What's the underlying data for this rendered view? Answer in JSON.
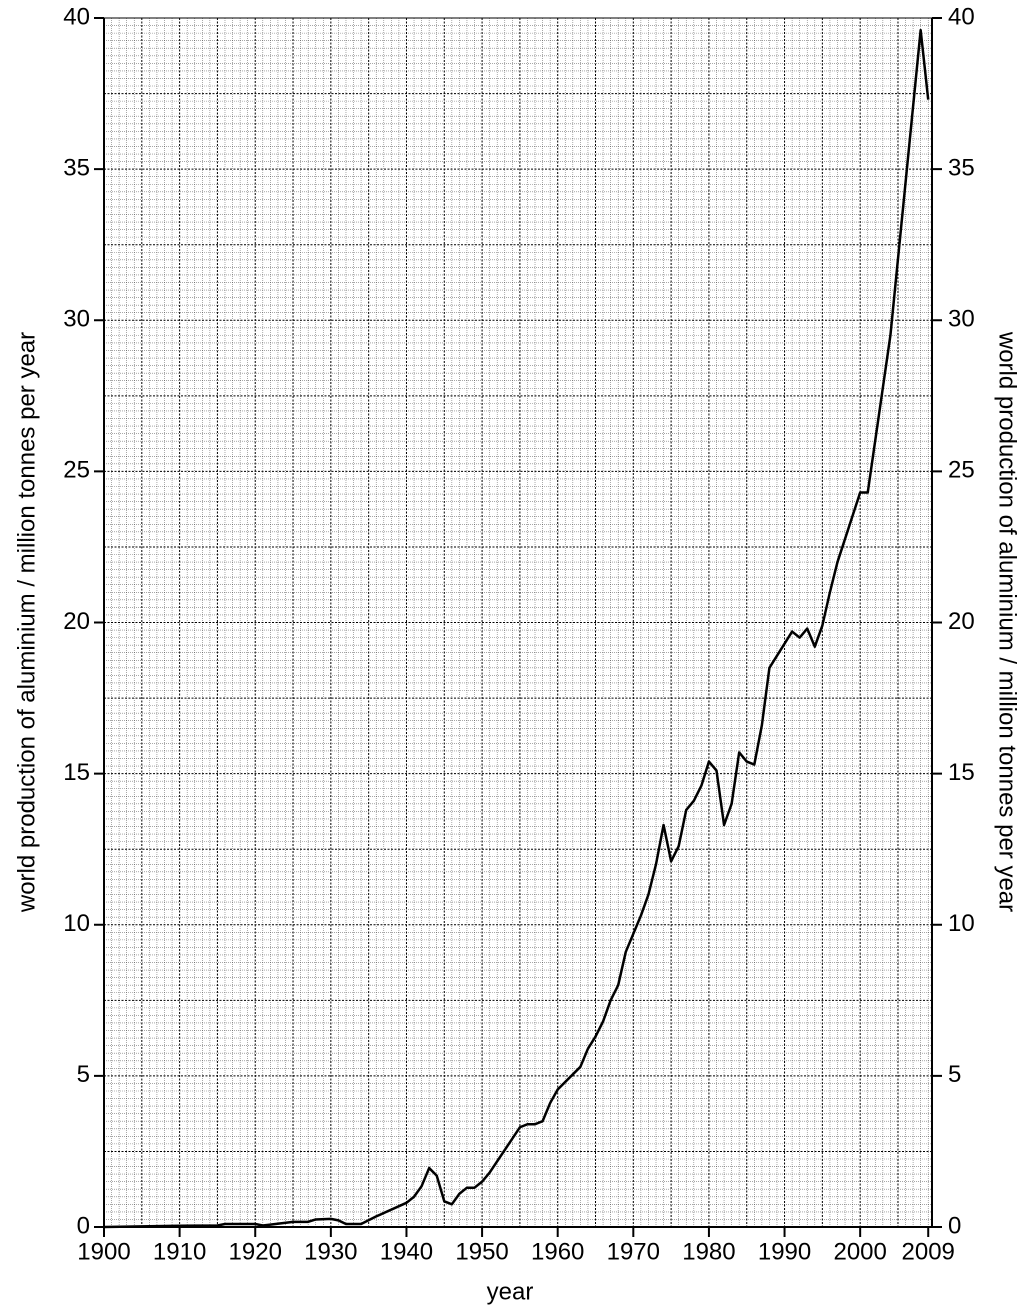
{
  "chart_data": {
    "type": "line",
    "x_label": "year",
    "y_label": "world production of aluminium / million tonnes per year",
    "y2_label": "world production of aluminium / million tonnes per year",
    "xlim": [
      1900,
      2009.5
    ],
    "xticks": [
      1900,
      1910,
      1920,
      1930,
      1940,
      1950,
      1960,
      1970,
      1980,
      1990,
      2000,
      2009
    ],
    "ylim": [
      0,
      40
    ],
    "yticks": [
      0,
      5,
      10,
      15,
      20,
      25,
      30,
      35,
      40
    ],
    "y2lim": [
      0,
      40
    ],
    "y2ticks": [
      0,
      5,
      10,
      15,
      20,
      25,
      30,
      35,
      40
    ],
    "grid": true,
    "x": [
      1900,
      1905,
      1910,
      1915,
      1916,
      1920,
      1921,
      1922,
      1925,
      1927,
      1928,
      1930,
      1931,
      1932,
      1934,
      1936,
      1940,
      1941,
      1942,
      1943,
      1944,
      1945,
      1946,
      1947,
      1948,
      1949,
      1950,
      1951,
      1955,
      1956,
      1957,
      1958,
      1959,
      1960,
      1963,
      1964,
      1965,
      1966,
      1967,
      1968,
      1969,
      1970,
      1971,
      1972,
      1973,
      1974,
      1975,
      1976,
      1977,
      1978,
      1979,
      1980,
      1981,
      1982,
      1983,
      1984,
      1985,
      1986,
      1987,
      1988,
      1991,
      1992,
      1993,
      1994,
      1995,
      1996,
      1997,
      2000,
      2001,
      2004,
      2008,
      2009
    ],
    "series": [
      {
        "name": "world production",
        "color": "#000000",
        "values": [
          0,
          0.02,
          0.04,
          0.05,
          0.1,
          0.1,
          0.05,
          0.08,
          0.17,
          0.17,
          0.25,
          0.27,
          0.22,
          0.1,
          0.1,
          0.35,
          0.8,
          1.0,
          1.35,
          1.95,
          1.7,
          0.85,
          0.75,
          1.1,
          1.3,
          1.3,
          1.5,
          1.8,
          3.3,
          3.4,
          3.4,
          3.5,
          4.1,
          4.55,
          5.3,
          5.9,
          6.3,
          6.8,
          7.5,
          8.0,
          9.1,
          9.7,
          10.3,
          11.0,
          12.0,
          13.3,
          12.1,
          12.6,
          13.8,
          14.1,
          14.6,
          15.4,
          15.1,
          13.3,
          14.0,
          15.7,
          15.4,
          15.3,
          16.6,
          18.5,
          19.7,
          19.5,
          19.8,
          19.2,
          19.9,
          21.0,
          22.0,
          24.3,
          24.3,
          29.5,
          39.6,
          37.3
        ]
      }
    ]
  }
}
